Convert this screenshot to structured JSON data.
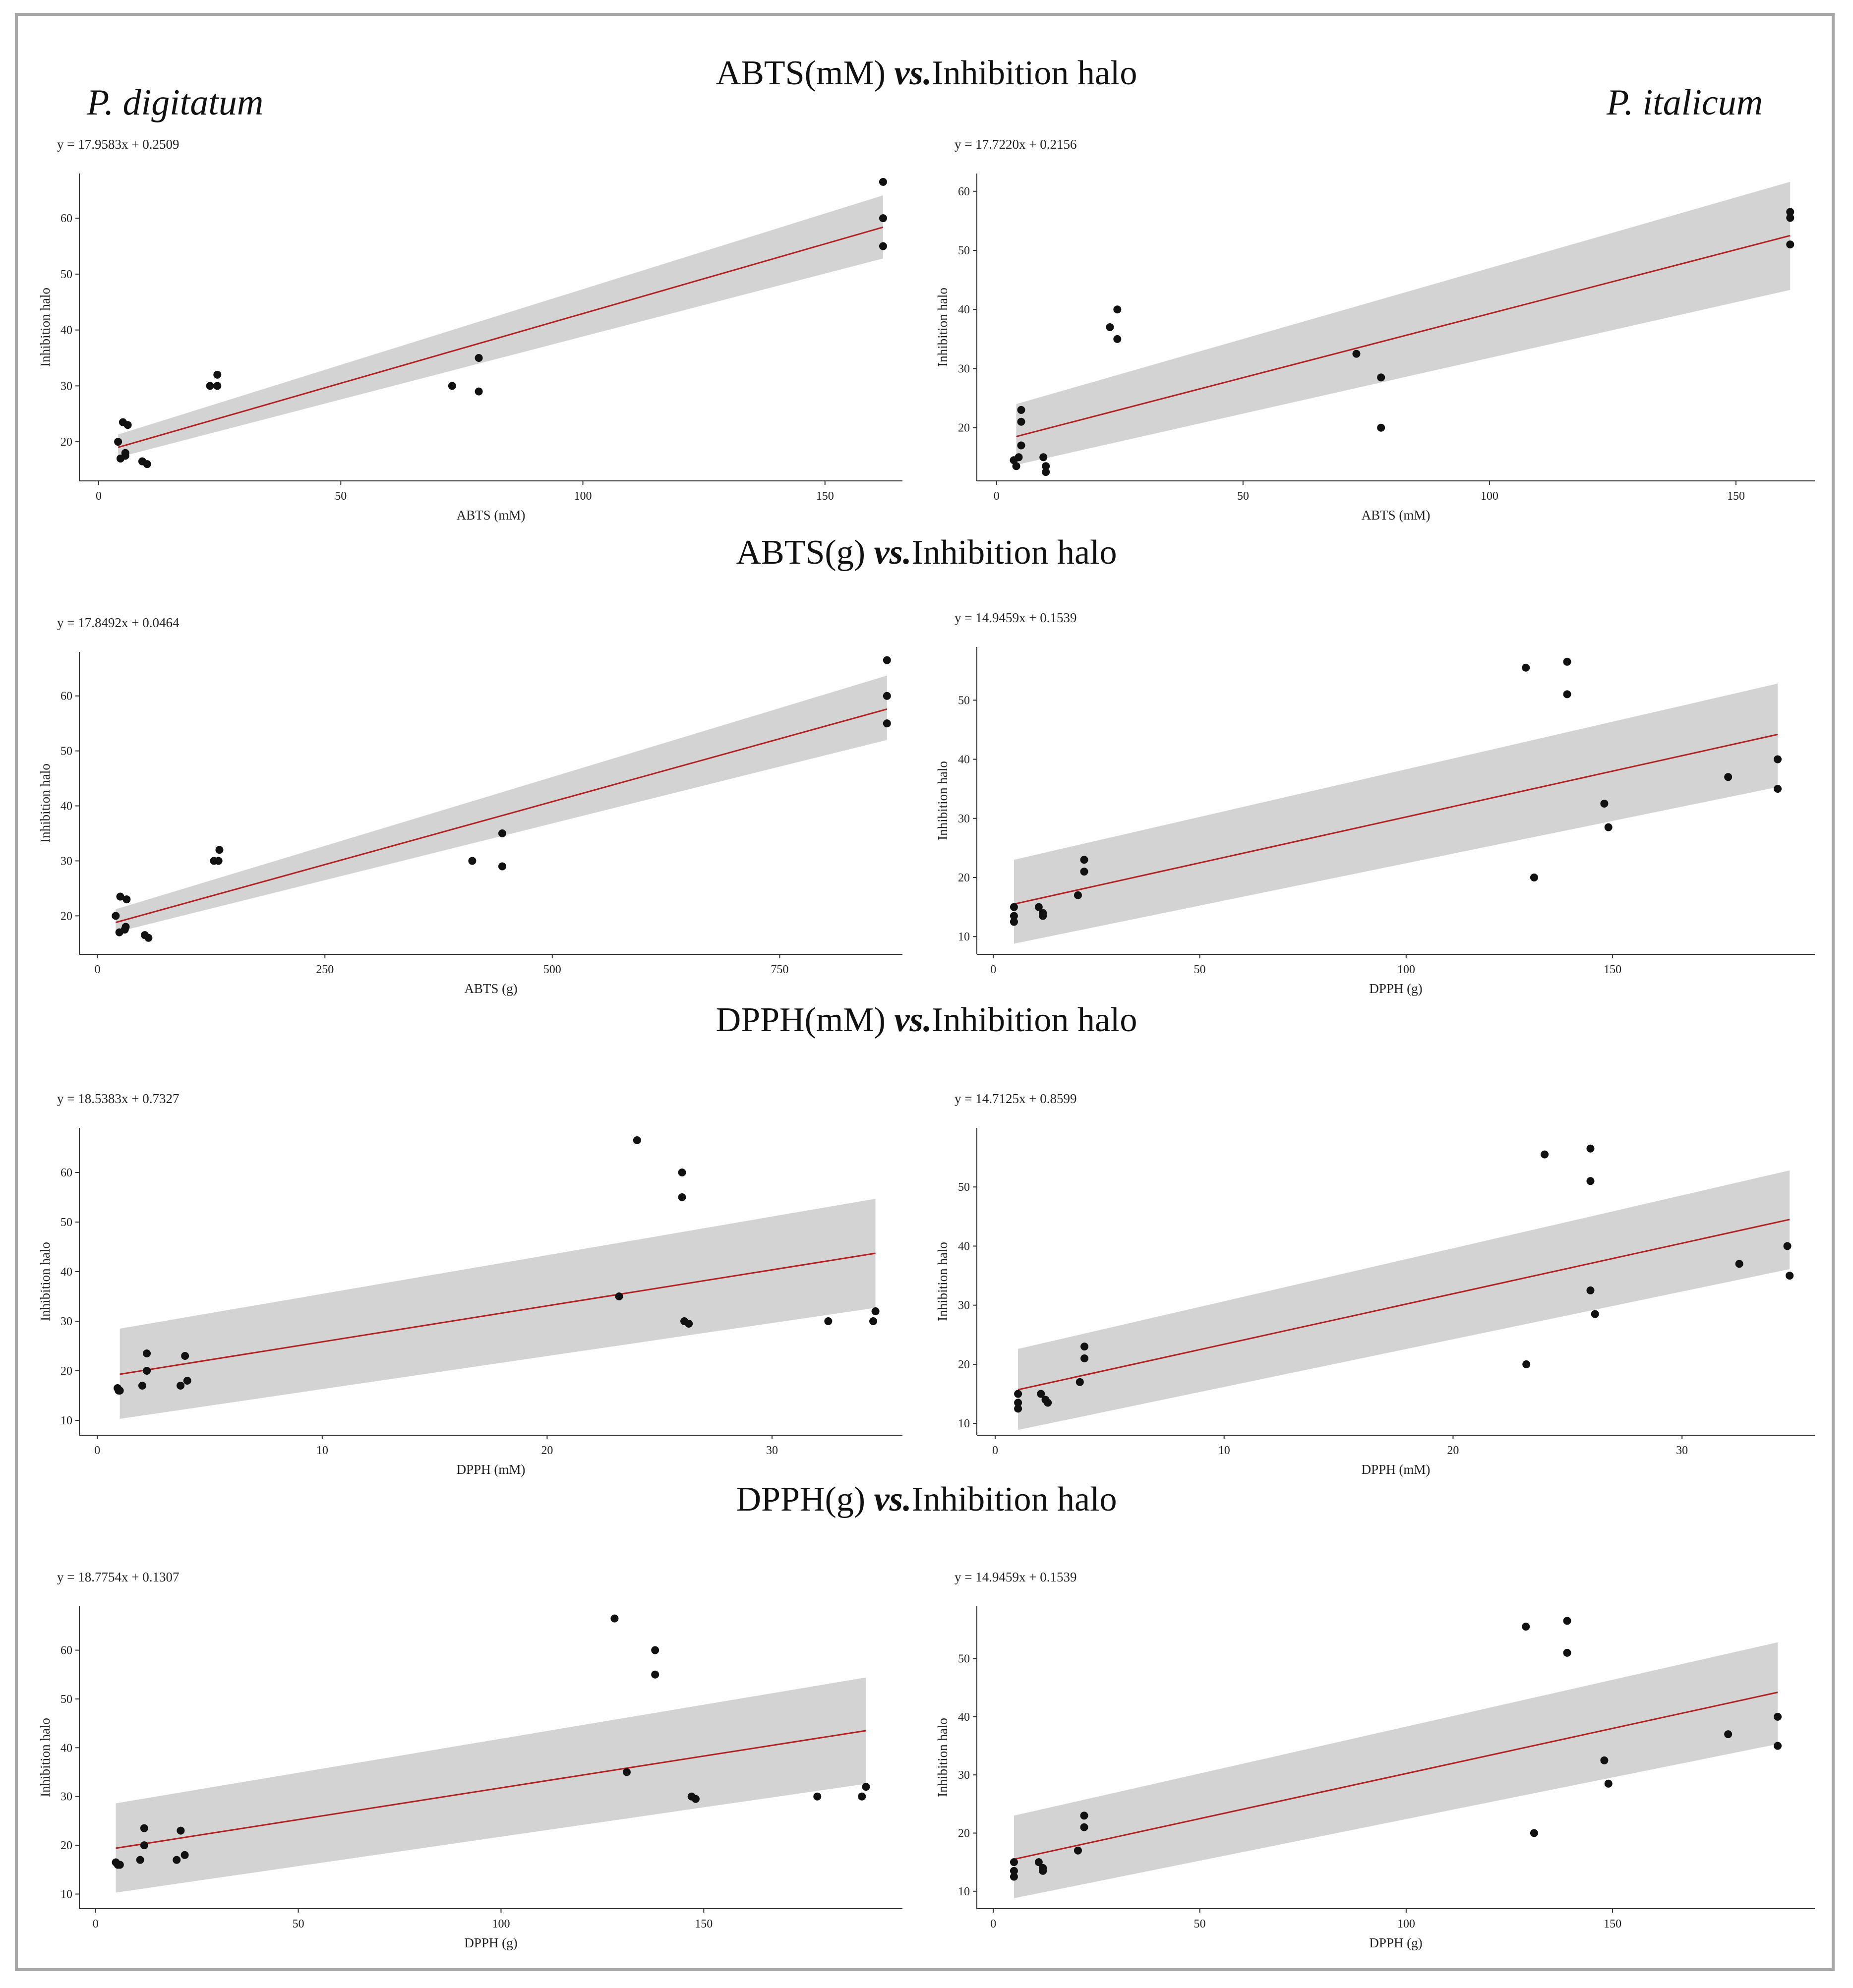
{
  "sections": [
    {
      "prefix": "ABTS(mM)",
      "vs": "vs.",
      "suffix": "Inhibition halo"
    },
    {
      "prefix": "ABTS(g)",
      "vs": "vs.",
      "suffix": "Inhibition halo"
    },
    {
      "prefix": "DPPH(mM)",
      "vs": "vs.",
      "suffix": "Inhibition halo"
    },
    {
      "prefix": "DPPH(g)",
      "vs": "vs.",
      "suffix": "Inhibition halo"
    }
  ],
  "species": {
    "left": "P. digitatum",
    "right": "P. italicum"
  },
  "colors": {
    "line": "#b22222",
    "band": "#d3d3d3",
    "point": "#111111",
    "frame": "#a7a7a7"
  },
  "chart_data": [
    {
      "type": "scatter",
      "title": "y = 17.9583x + 0.2509",
      "xlabel": "ABTS (mM)",
      "ylabel": "Inhibition halo",
      "xlim": [
        -4,
        166
      ],
      "ylim": [
        13,
        68
      ],
      "xticks": [
        0,
        50,
        100,
        150
      ],
      "yticks": [
        20,
        30,
        40,
        50,
        60
      ],
      "points": [
        [
          4,
          20
        ],
        [
          4.5,
          17
        ],
        [
          5,
          23.5
        ],
        [
          5.5,
          17.5
        ],
        [
          6,
          23
        ],
        [
          5.5,
          18
        ],
        [
          9,
          16.5
        ],
        [
          10,
          16
        ],
        [
          23,
          30
        ],
        [
          24.5,
          30
        ],
        [
          24.5,
          32
        ],
        [
          73,
          30
        ],
        [
          78.5,
          35
        ],
        [
          78.5,
          29
        ],
        [
          162,
          66.5
        ],
        [
          162,
          60
        ],
        [
          162,
          55
        ]
      ],
      "fit": {
        "x1": 4,
        "y1": 19.0,
        "x2": 162,
        "y2": 58.4
      },
      "band": {
        "lower1": 17.2,
        "upper1": 21.3,
        "lower2": 52.8,
        "upper2": 64.1
      }
    },
    {
      "type": "scatter",
      "title": "y = 17.7220x + 0.2156",
      "xlabel": "ABTS (mM)",
      "ylabel": "Inhibition halo",
      "xlim": [
        -4,
        166
      ],
      "ylim": [
        11,
        63
      ],
      "xticks": [
        0,
        50,
        100,
        150
      ],
      "yticks": [
        20,
        30,
        40,
        50,
        60
      ],
      "points": [
        [
          3.5,
          14.5
        ],
        [
          4,
          13.5
        ],
        [
          4.5,
          15
        ],
        [
          5,
          17
        ],
        [
          5,
          21
        ],
        [
          5,
          23
        ],
        [
          9.5,
          15
        ],
        [
          10,
          13.5
        ],
        [
          10,
          12.5
        ],
        [
          23,
          37
        ],
        [
          24.5,
          40
        ],
        [
          24.5,
          35
        ],
        [
          73,
          32.5
        ],
        [
          78,
          28.5
        ],
        [
          78,
          20
        ],
        [
          161,
          56.5
        ],
        [
          161,
          55.5
        ],
        [
          161,
          51
        ]
      ],
      "fit": {
        "x1": 4,
        "y1": 18.5,
        "x2": 161,
        "y2": 52.5
      },
      "band": {
        "lower1": 13.7,
        "upper1": 24.0,
        "lower2": 43.3,
        "upper2": 61.6
      }
    },
    {
      "type": "scatter",
      "title": "y = 17.8492x + 0.0464",
      "xlabel": "ABTS (g)",
      "ylabel": "Inhibition halo",
      "xlim": [
        -20,
        885
      ],
      "ylim": [
        13,
        68
      ],
      "xticks": [
        0,
        250,
        500,
        750
      ],
      "yticks": [
        20,
        30,
        40,
        50,
        60
      ],
      "points": [
        [
          20,
          20
        ],
        [
          24,
          17
        ],
        [
          25,
          23.5
        ],
        [
          30,
          17.5
        ],
        [
          32,
          23
        ],
        [
          31,
          18
        ],
        [
          52,
          16.5
        ],
        [
          56,
          16
        ],
        [
          128,
          30
        ],
        [
          133,
          30
        ],
        [
          134,
          32
        ],
        [
          412,
          30
        ],
        [
          445,
          35
        ],
        [
          445,
          29
        ],
        [
          868,
          66.5
        ],
        [
          868,
          60
        ],
        [
          868,
          55
        ]
      ],
      "fit": {
        "x1": 20,
        "y1": 18.8,
        "x2": 868,
        "y2": 57.6
      },
      "band": {
        "lower1": 17.0,
        "upper1": 21.2,
        "lower2": 52.0,
        "upper2": 63.7
      }
    },
    {
      "type": "scatter",
      "title": "y = 14.9459x + 0.1539",
      "xlabel": "DPPH (g)",
      "ylabel": "Inhibition halo",
      "xlim": [
        -4,
        199
      ],
      "ylim": [
        7,
        59
      ],
      "xticks": [
        0,
        50,
        100,
        150
      ],
      "yticks": [
        10,
        20,
        30,
        40,
        50
      ],
      "points": [
        [
          5,
          15
        ],
        [
          5,
          13.5
        ],
        [
          5,
          12.5
        ],
        [
          11,
          15
        ],
        [
          12,
          14
        ],
        [
          12,
          13.5
        ],
        [
          20.5,
          17
        ],
        [
          22,
          21
        ],
        [
          22,
          23
        ],
        [
          129,
          55.5
        ],
        [
          131,
          20
        ],
        [
          139,
          56.5
        ],
        [
          139,
          51
        ],
        [
          148,
          32.5
        ],
        [
          149,
          28.5
        ],
        [
          178,
          37
        ],
        [
          190,
          40
        ],
        [
          190,
          35
        ]
      ],
      "fit": {
        "x1": 5,
        "y1": 15.5,
        "x2": 190,
        "y2": 44.2
      },
      "band": {
        "lower1": 8.8,
        "upper1": 23.0,
        "lower2": 35.3,
        "upper2": 52.8
      }
    },
    {
      "type": "scatter",
      "title": "y = 18.5383x + 0.7327",
      "xlabel": "DPPH (mM)",
      "ylabel": "Inhibition halo",
      "xlim": [
        -0.8,
        35.8
      ],
      "ylim": [
        7,
        69
      ],
      "xticks": [
        0,
        10,
        20,
        30
      ],
      "yticks": [
        10,
        20,
        30,
        40,
        50,
        60
      ],
      "points": [
        [
          0.9,
          16.5
        ],
        [
          0.95,
          16
        ],
        [
          1,
          16
        ],
        [
          2,
          17
        ],
        [
          2.2,
          20
        ],
        [
          2.2,
          23.5
        ],
        [
          3.7,
          17
        ],
        [
          3.9,
          23
        ],
        [
          4,
          18
        ],
        [
          23.2,
          35
        ],
        [
          24,
          66.5
        ],
        [
          26,
          60
        ],
        [
          26,
          55
        ],
        [
          26.1,
          30
        ],
        [
          26.3,
          29.5
        ],
        [
          32.5,
          30
        ],
        [
          34.5,
          30
        ],
        [
          34.6,
          32
        ]
      ],
      "fit": {
        "x1": 1,
        "y1": 19.3,
        "x2": 34.6,
        "y2": 43.7
      },
      "band": {
        "lower1": 10.3,
        "upper1": 28.5,
        "lower2": 32.7,
        "upper2": 54.7
      }
    },
    {
      "type": "scatter",
      "title": "y = 14.7125x + 0.8599",
      "xlabel": "DPPH (mM)",
      "ylabel": "Inhibition halo",
      "xlim": [
        -0.8,
        35.8
      ],
      "ylim": [
        8,
        60
      ],
      "xticks": [
        0,
        10,
        20,
        30
      ],
      "yticks": [
        10,
        20,
        30,
        40,
        50
      ],
      "points": [
        [
          1,
          15
        ],
        [
          1,
          13.5
        ],
        [
          1,
          12.5
        ],
        [
          2,
          15
        ],
        [
          2.2,
          14
        ],
        [
          2.3,
          13.5
        ],
        [
          3.7,
          17
        ],
        [
          3.9,
          21
        ],
        [
          3.9,
          23
        ],
        [
          23.2,
          20
        ],
        [
          24,
          55.5
        ],
        [
          26,
          56.5
        ],
        [
          26,
          51
        ],
        [
          26,
          32.5
        ],
        [
          26.2,
          28.5
        ],
        [
          32.5,
          37
        ],
        [
          34.6,
          40
        ],
        [
          34.7,
          35
        ]
      ],
      "fit": {
        "x1": 1,
        "y1": 15.7,
        "x2": 34.7,
        "y2": 44.5
      },
      "band": {
        "lower1": 8.9,
        "upper1": 22.6,
        "lower2": 36.1,
        "upper2": 52.8
      }
    },
    {
      "type": "scatter",
      "title": "y = 18.7754x + 0.1307",
      "xlabel": "DPPH (g)",
      "ylabel": "Inhibition halo",
      "xlim": [
        -4,
        199
      ],
      "ylim": [
        7,
        69
      ],
      "xticks": [
        0,
        50,
        100,
        150
      ],
      "yticks": [
        10,
        20,
        30,
        40,
        50,
        60
      ],
      "points": [
        [
          5,
          16.5
        ],
        [
          5.5,
          16
        ],
        [
          6,
          16
        ],
        [
          11,
          17
        ],
        [
          12,
          20
        ],
        [
          12,
          23.5
        ],
        [
          20,
          17
        ],
        [
          21,
          23
        ],
        [
          22,
          18
        ],
        [
          128,
          66.5
        ],
        [
          131,
          35
        ],
        [
          138,
          60
        ],
        [
          138,
          55
        ],
        [
          147,
          30
        ],
        [
          148,
          29.5
        ],
        [
          178,
          30
        ],
        [
          189,
          30
        ],
        [
          190,
          32
        ]
      ],
      "fit": {
        "x1": 5,
        "y1": 19.4,
        "x2": 190,
        "y2": 43.5
      },
      "band": {
        "lower1": 10.3,
        "upper1": 28.6,
        "lower2": 32.6,
        "upper2": 54.4
      }
    },
    {
      "type": "scatter",
      "title": "y = 14.9459x + 0.1539",
      "xlabel": "DPPH (g)",
      "ylabel": "Inhibition halo",
      "xlim": [
        -4,
        199
      ],
      "ylim": [
        7,
        59
      ],
      "xticks": [
        0,
        50,
        100,
        150
      ],
      "yticks": [
        10,
        20,
        30,
        40,
        50
      ],
      "points": [
        [
          5,
          15
        ],
        [
          5,
          13.5
        ],
        [
          5,
          12.5
        ],
        [
          11,
          15
        ],
        [
          12,
          14
        ],
        [
          12,
          13.5
        ],
        [
          20.5,
          17
        ],
        [
          22,
          21
        ],
        [
          22,
          23
        ],
        [
          129,
          55.5
        ],
        [
          131,
          20
        ],
        [
          139,
          56.5
        ],
        [
          139,
          51
        ],
        [
          148,
          32.5
        ],
        [
          149,
          28.5
        ],
        [
          178,
          37
        ],
        [
          190,
          40
        ],
        [
          190,
          35
        ]
      ],
      "fit": {
        "x1": 5,
        "y1": 15.5,
        "x2": 190,
        "y2": 44.2
      },
      "band": {
        "lower1": 8.8,
        "upper1": 23.0,
        "lower2": 35.3,
        "upper2": 52.8
      }
    }
  ]
}
